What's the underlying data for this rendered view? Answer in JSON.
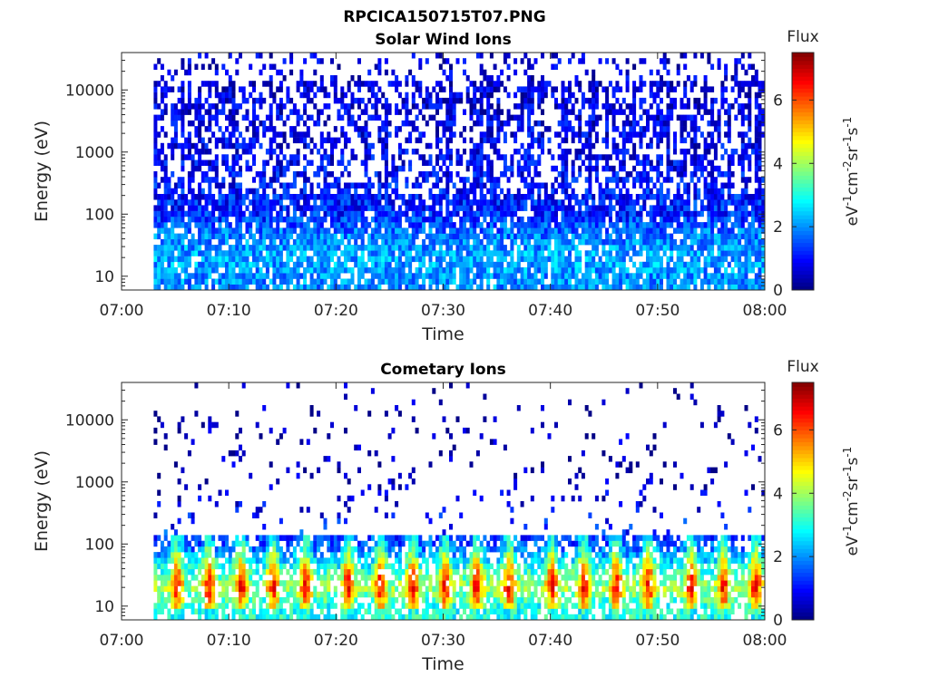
{
  "figure": {
    "title": "RPCICA150715T07.PNG"
  },
  "chart_data": [
    {
      "type": "heatmap",
      "title": "Solar Wind Ions",
      "xlabel": "Time",
      "ylabel": "Energy (eV)",
      "x_ticks": [
        "07:00",
        "07:10",
        "07:20",
        "07:30",
        "07:40",
        "07:50",
        "08:00"
      ],
      "xlim": [
        "07:00",
        "08:00"
      ],
      "y_scale": "log",
      "y_ticks": [
        10,
        100,
        1000,
        10000
      ],
      "ylim": [
        6,
        40000
      ],
      "data_time_range": [
        "07:03",
        "08:00"
      ],
      "colorbar": {
        "title": "Flux",
        "label": "eV-1cm-2sr-1s-1",
        "label_parts": [
          "eV",
          "-1",
          "cm",
          "-2",
          "sr",
          "-1",
          "s",
          "-1"
        ],
        "ticks": [
          0,
          2,
          4,
          6
        ],
        "range": [
          0,
          7.5
        ],
        "colormap": "jet"
      },
      "flux_profile": [
        {
          "energy": 10,
          "typical": 2.0,
          "max": 3.5
        },
        {
          "energy": 20,
          "typical": 2.2,
          "max": 4.0
        },
        {
          "energy": 50,
          "typical": 1.8,
          "max": 3.0
        },
        {
          "energy": 100,
          "typical": 1.2,
          "max": 2.5
        },
        {
          "energy": 1000,
          "typical": 0.8,
          "max": 1.5
        },
        {
          "energy": 10000,
          "typical": 0.7,
          "max": 1.2
        }
      ]
    },
    {
      "type": "heatmap",
      "title": "Cometary Ions",
      "xlabel": "Time",
      "ylabel": "Energy (eV)",
      "x_ticks": [
        "07:00",
        "07:10",
        "07:20",
        "07:30",
        "07:40",
        "07:50",
        "08:00"
      ],
      "xlim": [
        "07:00",
        "08:00"
      ],
      "y_scale": "log",
      "y_ticks": [
        10,
        100,
        1000,
        10000
      ],
      "ylim": [
        6,
        40000
      ],
      "data_time_range": [
        "07:03",
        "08:00"
      ],
      "colorbar": {
        "title": "Flux",
        "label": "eV-1cm-2sr-1s-1",
        "label_parts": [
          "eV",
          "-1",
          "cm",
          "-2",
          "sr",
          "-1",
          "s",
          "-1"
        ],
        "ticks": [
          0,
          2,
          4,
          6
        ],
        "range": [
          0,
          7.5
        ],
        "colormap": "jet"
      },
      "flux_profile": [
        {
          "energy": 10,
          "typical": 3.0,
          "max": 5.5
        },
        {
          "energy": 20,
          "typical": 4.0,
          "max": 7.0
        },
        {
          "energy": 30,
          "typical": 3.5,
          "max": 6.5
        },
        {
          "energy": 100,
          "typical": 1.5,
          "max": 3.5
        },
        {
          "energy": 1000,
          "typical": 0.3,
          "max": 1.0
        },
        {
          "energy": 10000,
          "typical": 0.3,
          "max": 1.0
        }
      ],
      "enhancement_times": [
        "07:05",
        "07:08",
        "07:11",
        "07:14",
        "07:17",
        "07:21",
        "07:24",
        "07:27",
        "07:30",
        "07:33",
        "07:36",
        "07:40",
        "07:43",
        "07:46",
        "07:49",
        "07:53",
        "07:56",
        "07:59"
      ]
    }
  ]
}
